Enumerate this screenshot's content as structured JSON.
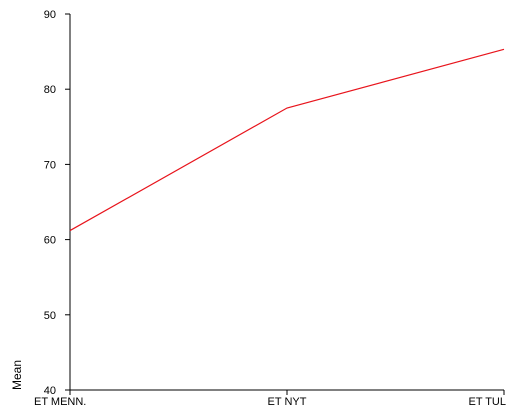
{
  "chart_data": {
    "type": "line",
    "title": "",
    "xlabel": "",
    "ylabel": "Mean",
    "categories": [
      "ET MENN.",
      "ET NYT",
      "ET TUL"
    ],
    "series": [
      {
        "values": [
          61.2,
          77.5,
          85.3
        ]
      }
    ],
    "ylim": [
      40,
      90
    ],
    "yticks": [
      40,
      50,
      60,
      70,
      80,
      90
    ],
    "grid": false,
    "legend": "none",
    "colors": {
      "line": "#e8141c",
      "axis": "#000000",
      "background": "#ffffff"
    }
  }
}
